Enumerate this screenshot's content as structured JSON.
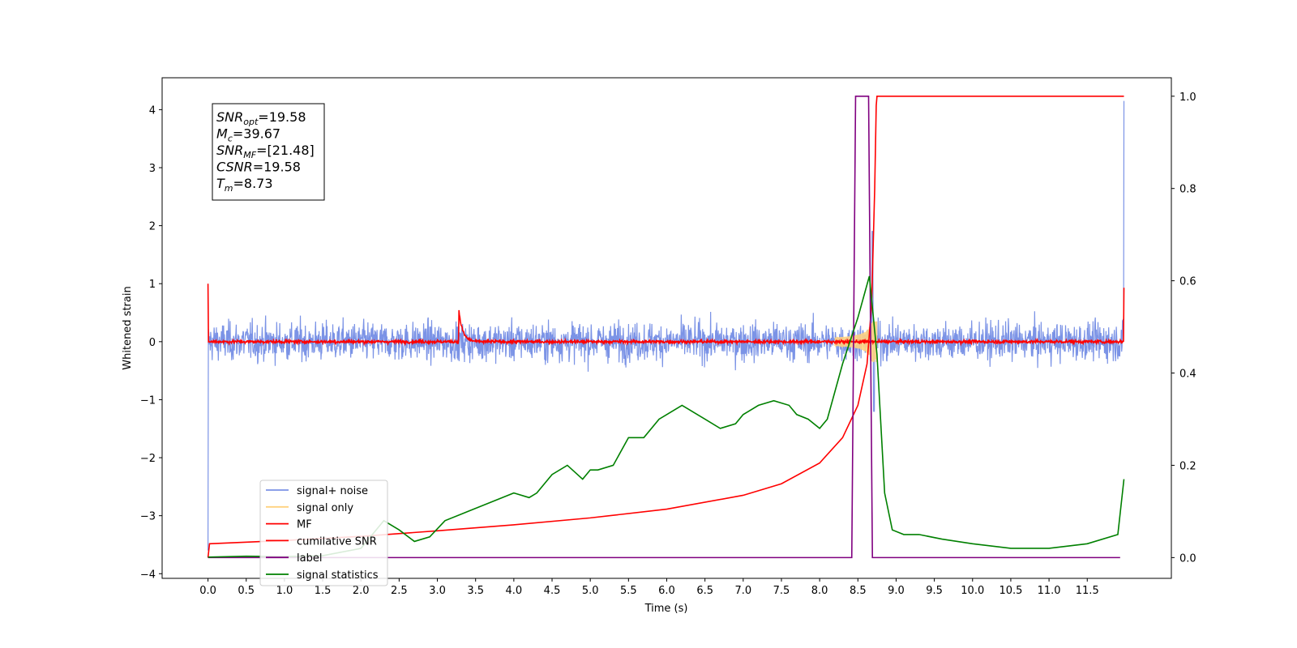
{
  "chart_data": {
    "type": "line",
    "xlabel": "Time (s)",
    "ylabel": "Whitened strain",
    "xlim": [
      -0.6,
      12.6
    ],
    "ylim": [
      -4.08,
      4.55
    ],
    "ylim_right": [
      -0.045,
      1.04
    ],
    "xticks": [
      "0.0",
      "0.5",
      "1.0",
      "1.5",
      "2.0",
      "2.5",
      "3.0",
      "3.5",
      "4.0",
      "4.5",
      "5.0",
      "5.5",
      "6.0",
      "6.5",
      "7.0",
      "7.5",
      "8.0",
      "8.5",
      "9.0",
      "9.5",
      "10.0",
      "10.5",
      "11.0",
      "11.5"
    ],
    "yticks_left": [
      "−4",
      "−3",
      "−2",
      "−1",
      "0",
      "1",
      "2",
      "3",
      "4"
    ],
    "yticks_right": [
      "0.0",
      "0.2",
      "0.4",
      "0.6",
      "0.8",
      "1.0"
    ],
    "info_box": [
      {
        "base": "SNR",
        "sub": "opt",
        "rest": "=19.58"
      },
      {
        "base": "M",
        "sub": "c",
        "rest": "=39.67"
      },
      {
        "base": "SNR",
        "sub": "MF",
        "rest": "=[21.48]"
      },
      {
        "base": "CSNR",
        "sub": "",
        "rest": "=19.58"
      },
      {
        "base": "T",
        "sub": "m",
        "rest": "=8.73"
      }
    ],
    "legend": {
      "placement": "lower-left",
      "entries": [
        {
          "label": "signal+ noise",
          "color": "#7b93e6"
        },
        {
          "label": "signal only",
          "color": "#ffd27f"
        },
        {
          "label": "MF",
          "color": "#ff0000"
        },
        {
          "label": "cumilative SNR",
          "color": "#ff0000"
        },
        {
          "label": "label",
          "color": "#800080"
        },
        {
          "label": "signal statistics",
          "color": "#008000"
        }
      ]
    },
    "series": [
      {
        "name": "signal+ noise",
        "axis": "left",
        "color": "#7b93e6",
        "kind": "noise",
        "x_range": [
          0,
          11.98
        ],
        "amplitude": 0.85,
        "start_spike": -3.6,
        "end_spike": 4.15,
        "merger_spike": [
          8.69,
          1.9
        ]
      },
      {
        "name": "signal only",
        "axis": "left",
        "color": "#ffd27f",
        "kind": "chirp",
        "x_range": [
          8.2,
          8.75
        ],
        "peak_amplitude": 0.35
      },
      {
        "name": "MF",
        "axis": "left",
        "color": "#ff0000",
        "kind": "noise",
        "x_range": [
          0,
          11.98
        ],
        "amplitude": 0.07,
        "start_spike": 1.0,
        "end_spike": 0.93,
        "bump": [
          3.28,
          0.55
        ]
      },
      {
        "name": "cumilative SNR",
        "axis": "right",
        "color": "#ff0000",
        "x": [
          0.0,
          0.02,
          1.0,
          2.0,
          3.0,
          4.0,
          5.0,
          6.0,
          7.0,
          7.5,
          8.0,
          8.3,
          8.5,
          8.62,
          8.68,
          8.72,
          8.74,
          8.75,
          11.98
        ],
        "y": [
          0.0,
          0.03,
          0.037,
          0.046,
          0.058,
          0.071,
          0.086,
          0.105,
          0.135,
          0.16,
          0.205,
          0.26,
          0.33,
          0.42,
          0.55,
          0.8,
          0.98,
          1.0,
          1.0
        ]
      },
      {
        "name": "label",
        "axis": "right",
        "color": "#800080",
        "x": [
          0.0,
          8.42,
          8.47,
          8.64,
          8.69,
          11.93
        ],
        "y": [
          0.0,
          0.0,
          1.0,
          1.0,
          0.0,
          0.0
        ]
      },
      {
        "name": "signal statistics",
        "axis": "right",
        "color": "#008000",
        "x": [
          0.0,
          0.5,
          1.0,
          1.5,
          2.0,
          2.3,
          2.5,
          2.7,
          2.9,
          3.1,
          3.4,
          3.7,
          4.0,
          4.2,
          4.3,
          4.5,
          4.7,
          4.9,
          5.0,
          5.1,
          5.3,
          5.5,
          5.7,
          5.9,
          6.0,
          6.2,
          6.3,
          6.5,
          6.7,
          6.9,
          7.0,
          7.2,
          7.4,
          7.6,
          7.7,
          7.85,
          8.0,
          8.1,
          8.3,
          8.5,
          8.6,
          8.65,
          8.75,
          8.85,
          8.95,
          9.1,
          9.3,
          9.6,
          10.0,
          10.5,
          11.0,
          11.5,
          11.9,
          11.98
        ],
        "y": [
          0.001,
          0.003,
          0.002,
          0.004,
          0.02,
          0.08,
          0.06,
          0.035,
          0.045,
          0.08,
          0.1,
          0.12,
          0.14,
          0.13,
          0.14,
          0.18,
          0.2,
          0.17,
          0.19,
          0.19,
          0.2,
          0.26,
          0.26,
          0.3,
          0.31,
          0.33,
          0.32,
          0.3,
          0.28,
          0.29,
          0.31,
          0.33,
          0.34,
          0.33,
          0.31,
          0.3,
          0.28,
          0.3,
          0.42,
          0.52,
          0.58,
          0.61,
          0.44,
          0.14,
          0.06,
          0.05,
          0.05,
          0.04,
          0.03,
          0.02,
          0.02,
          0.03,
          0.05,
          0.17
        ]
      }
    ]
  }
}
